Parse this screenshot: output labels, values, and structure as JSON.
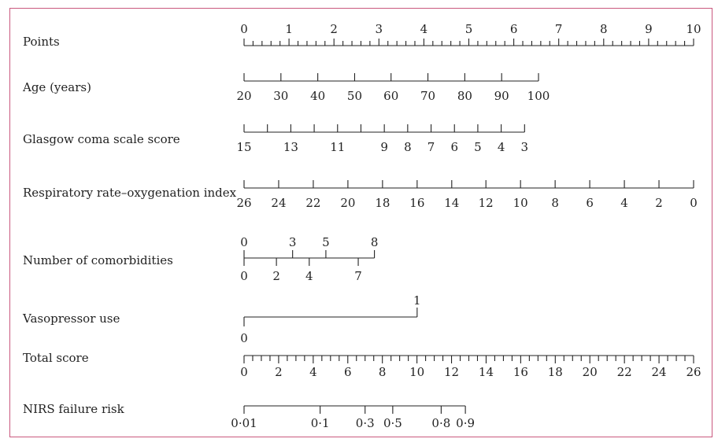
{
  "chart_data": {
    "type": "nomogram",
    "title": "",
    "colors": {
      "frame": "#c9587e",
      "ink": "#222222"
    },
    "scales": [
      {
        "key": "points",
        "label": "Points",
        "major": [
          "0",
          "1",
          "2",
          "3",
          "4",
          "5",
          "6",
          "7",
          "8",
          "9",
          "10"
        ],
        "minor_per_major": 5,
        "range": [
          0,
          10
        ]
      },
      {
        "key": "age",
        "label": "Age (years)",
        "ticks": [
          {
            "text": "20",
            "points": 0.0
          },
          {
            "text": "30",
            "points": 0.82
          },
          {
            "text": "40",
            "points": 1.64
          },
          {
            "text": "50",
            "points": 2.46
          },
          {
            "text": "60",
            "points": 3.27
          },
          {
            "text": "70",
            "points": 4.09
          },
          {
            "text": "80",
            "points": 4.91
          },
          {
            "text": "90",
            "points": 5.73
          },
          {
            "text": "100",
            "points": 6.55
          }
        ]
      },
      {
        "key": "gcs",
        "label": "Glasgow coma scale score",
        "ticks": [
          {
            "text": "15",
            "points": 0.0
          },
          {
            "text": "",
            "points": 0.52
          },
          {
            "text": "13",
            "points": 1.04
          },
          {
            "text": "",
            "points": 1.56
          },
          {
            "text": "11",
            "points": 2.08
          },
          {
            "text": "",
            "points": 2.6
          },
          {
            "text": "9",
            "points": 3.12
          },
          {
            "text": "8",
            "points": 3.64
          },
          {
            "text": "7",
            "points": 4.16
          },
          {
            "text": "6",
            "points": 4.68
          },
          {
            "text": "5",
            "points": 5.2
          },
          {
            "text": "4",
            "points": 5.72
          },
          {
            "text": "3",
            "points": 6.24
          }
        ]
      },
      {
        "key": "rox",
        "label": "Respiratory rate–oxygenation index",
        "ticks": [
          {
            "text": "26",
            "points": 0.0
          },
          {
            "text": "24",
            "points": 0.77
          },
          {
            "text": "22",
            "points": 1.54
          },
          {
            "text": "20",
            "points": 2.31
          },
          {
            "text": "18",
            "points": 3.08
          },
          {
            "text": "16",
            "points": 3.85
          },
          {
            "text": "14",
            "points": 4.62
          },
          {
            "text": "12",
            "points": 5.38
          },
          {
            "text": "10",
            "points": 6.15
          },
          {
            "text": "8",
            "points": 6.92
          },
          {
            "text": "6",
            "points": 7.69
          },
          {
            "text": "4",
            "points": 8.46
          },
          {
            "text": "2",
            "points": 9.23
          },
          {
            "text": "0",
            "points": 10.0
          }
        ]
      },
      {
        "key": "comorbidities",
        "label": "Number of comorbidities",
        "upper": [
          {
            "text": "0",
            "points": 0.0
          },
          {
            "text": "3",
            "points": 1.08
          },
          {
            "text": "5",
            "points": 1.82
          },
          {
            "text": "8",
            "points": 2.9
          }
        ],
        "lower": [
          {
            "text": "0",
            "points": 0.0
          },
          {
            "text": "2",
            "points": 0.72
          },
          {
            "text": "4",
            "points": 1.45
          },
          {
            "text": "7",
            "points": 2.54
          }
        ],
        "range": [
          0,
          2.9
        ]
      },
      {
        "key": "vasopressor",
        "label": "Vasopressor use",
        "upper": [
          {
            "text": "1",
            "points": 3.85
          }
        ],
        "lower": [
          {
            "text": "0",
            "points": 0.0
          }
        ]
      },
      {
        "key": "total",
        "label": "Total score",
        "major": [
          "0",
          "2",
          "4",
          "6",
          "8",
          "10",
          "12",
          "14",
          "16",
          "18",
          "20",
          "22",
          "24",
          "26"
        ],
        "range": [
          0,
          26
        ],
        "minor_step": 0.5
      },
      {
        "key": "risk",
        "label": "NIRS failure risk",
        "ticks": [
          {
            "text": "0·01",
            "total": 0.0
          },
          {
            "text": "0·1",
            "total": 4.4
          },
          {
            "text": "0·3",
            "total": 7.0
          },
          {
            "text": "0·5",
            "total": 8.6
          },
          {
            "text": "0·8",
            "total": 11.4
          },
          {
            "text": "0·9",
            "total": 12.8
          }
        ]
      }
    ]
  }
}
